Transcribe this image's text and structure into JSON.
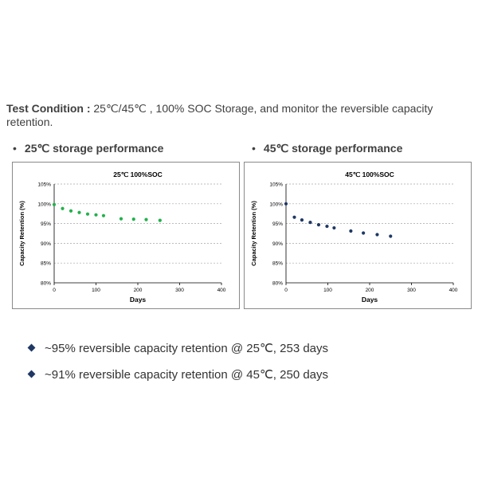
{
  "test_condition": {
    "label": "Test Condition :",
    "text": " 25℃/45℃ , 100% SOC Storage, and monitor the reversible capacity retention."
  },
  "sections": [
    {
      "bullet": "•",
      "title": "25℃ storage performance"
    },
    {
      "bullet": "•",
      "title": "45℃ storage performance"
    }
  ],
  "chart_data": [
    {
      "type": "scatter",
      "title": "25℃ 100%SOC",
      "xlabel": "Days",
      "ylabel": "Capacity Retention (%)",
      "xlim": [
        0,
        400
      ],
      "ylim": [
        80,
        105
      ],
      "x_ticks": [
        0,
        100,
        200,
        300,
        400
      ],
      "y_ticks": [
        80,
        85,
        90,
        95,
        100,
        105
      ],
      "y_tick_suffix": "%",
      "grid": "horizontal dashed",
      "marker_color": "#22b14c",
      "x": [
        0,
        20,
        40,
        60,
        80,
        100,
        118,
        160,
        190,
        220,
        253
      ],
      "y": [
        99.8,
        98.8,
        98.2,
        97.8,
        97.4,
        97.2,
        97.0,
        96.2,
        96.1,
        96.0,
        95.8
      ]
    },
    {
      "type": "scatter",
      "title": "45℃ 100%SOC",
      "xlabel": "Days",
      "ylabel": "Capacity Retention (%)",
      "xlim": [
        0,
        400
      ],
      "ylim": [
        80,
        105
      ],
      "x_ticks": [
        0,
        100,
        200,
        300,
        400
      ],
      "y_ticks": [
        80,
        85,
        90,
        95,
        100,
        105
      ],
      "y_tick_suffix": "%",
      "grid": "horizontal dashed",
      "marker_color": "#1f3864",
      "x": [
        0,
        20,
        38,
        58,
        78,
        98,
        115,
        155,
        185,
        218,
        250
      ],
      "y": [
        100,
        96.6,
        95.9,
        95.3,
        94.7,
        94.3,
        93.9,
        93.1,
        92.6,
        92.2,
        91.8
      ]
    }
  ],
  "bullets": [
    "~95% reversible capacity retention @ 25℃, 253 days",
    "~91% reversible capacity retention @ 45℃, 250 days"
  ]
}
